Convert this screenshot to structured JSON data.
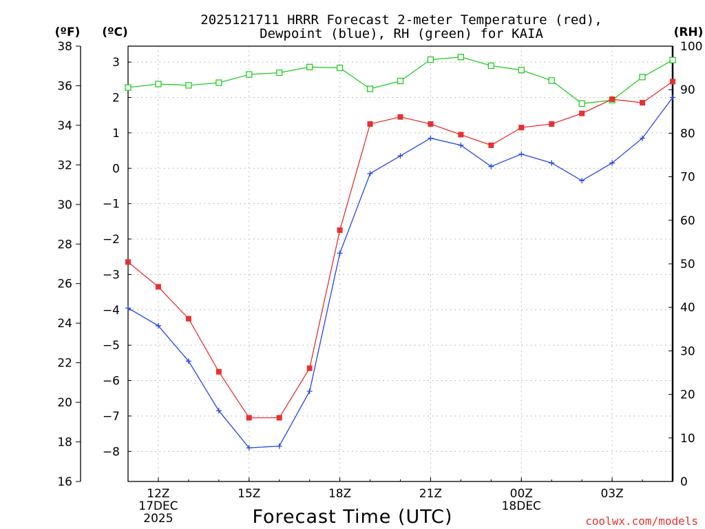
{
  "chart_data": {
    "type": "line",
    "title_line1": "2025121711 HRRR Forecast 2-meter Temperature (red),",
    "title_line2": "Dewpoint (blue), RH (green) for KAIA",
    "xlabel": "Forecast Time (UTC)",
    "credit": "coolwx.com/models",
    "units": {
      "fahrenheit": "(ºF)",
      "celsius": "(ºC)",
      "rh": "(RH)"
    },
    "x_hours": [
      11,
      12,
      13,
      14,
      15,
      16,
      17,
      18,
      19,
      20,
      21,
      22,
      23,
      24,
      25,
      26,
      27,
      28,
      29
    ],
    "xlim": [
      11,
      29
    ],
    "x_ticks": [
      {
        "hour": 12,
        "lines": [
          "12Z",
          "17DEC",
          "2025"
        ]
      },
      {
        "hour": 15,
        "lines": [
          "15Z"
        ]
      },
      {
        "hour": 18,
        "lines": [
          "18Z"
        ]
      },
      {
        "hour": 21,
        "lines": [
          "21Z"
        ]
      },
      {
        "hour": 24,
        "lines": [
          "00Z",
          "18DEC"
        ]
      },
      {
        "hour": 27,
        "lines": [
          "03Z"
        ]
      }
    ],
    "celsius_axis": {
      "ylim": [
        -8.85,
        3.45
      ],
      "ticks": [
        3,
        2,
        1,
        0,
        -1,
        -2,
        -3,
        -4,
        -5,
        -6,
        -7,
        -8
      ]
    },
    "fahrenheit_axis": {
      "ylim": [
        16,
        38
      ],
      "ticks": [
        38,
        36,
        34,
        32,
        30,
        28,
        26,
        24,
        22,
        20,
        18,
        16
      ]
    },
    "rh_axis": {
      "ylim": [
        0,
        100
      ],
      "ticks": [
        100,
        90,
        80,
        70,
        60,
        50,
        40,
        30,
        20,
        10,
        0
      ]
    },
    "series": [
      {
        "name": "Temperature",
        "unit": "C",
        "color": "#e83030",
        "marker": "filled-square",
        "values": [
          -2.65,
          -3.35,
          -4.25,
          -5.75,
          -7.05,
          -7.05,
          -5.65,
          -1.75,
          1.25,
          1.45,
          1.25,
          0.95,
          0.65,
          1.15,
          1.25,
          1.55,
          1.95,
          1.85,
          2.45
        ]
      },
      {
        "name": "Dewpoint",
        "unit": "C",
        "color": "#2244ee",
        "marker": "plus",
        "values": [
          -3.95,
          -4.45,
          -5.45,
          -6.85,
          -7.9,
          -7.85,
          -6.3,
          -2.4,
          -0.15,
          0.35,
          0.85,
          0.65,
          0.05,
          0.4,
          0.15,
          -0.35,
          0.15,
          0.85,
          2.0
        ]
      },
      {
        "name": "RH",
        "unit": "%",
        "color": "#22cc22",
        "marker": "open-square",
        "values": [
          90.5,
          91.3,
          91.0,
          91.6,
          93.5,
          93.9,
          95.2,
          95.0,
          90.2,
          92.0,
          96.9,
          97.5,
          95.5,
          94.5,
          92.1,
          86.8,
          87.6,
          92.9,
          96.8
        ]
      }
    ],
    "grid": true
  }
}
